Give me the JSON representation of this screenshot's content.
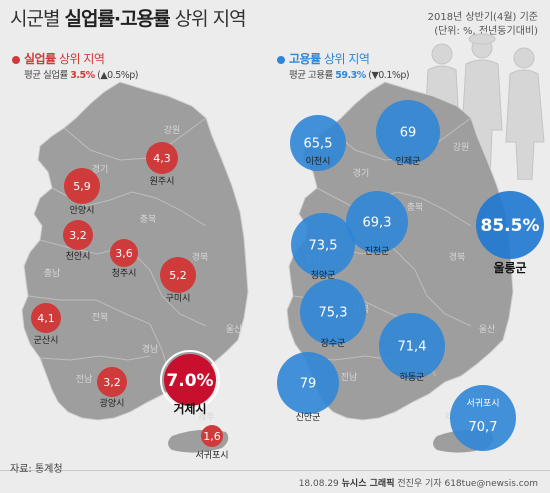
{
  "header": {
    "title_pre": "시군별 ",
    "title_bold": "실업률·고용률",
    "title_post": " 상위 지역",
    "date_note": "2018년 상반기(4월) 기준",
    "unit_note": "(단위: %, 전년동기대비)"
  },
  "unemployment_section": {
    "head_bold": "실업률",
    "head_rest": " 상위 지역",
    "avg_label": "평균 실업률 ",
    "avg_value": "3.5%",
    "avg_change": " (▲0.5%p)"
  },
  "employment_section": {
    "head_bold": "고용률",
    "head_rest": " 상위 지역",
    "avg_label": "평균 고용률 ",
    "avg_value": "59.3%",
    "avg_change": " (▼0.1%p)"
  },
  "region_labels_left": [
    "강원",
    "경기",
    "충북",
    "충남",
    "경북",
    "전북",
    "경남",
    "울산",
    "전남",
    "제주"
  ],
  "region_labels_right": [
    "강원",
    "경기",
    "충북",
    "충남",
    "경북",
    "전북",
    "울산",
    "전남",
    "제주"
  ],
  "colors": {
    "unemployment": "#cf3a3a",
    "unemployment_top": "#c8102e",
    "employment": "#2f86d6",
    "employment_top": "#1f78d1",
    "map": "#9e9e9e",
    "background": "#ececec"
  },
  "chart_data": [
    {
      "type": "table",
      "title": "실업률 상위 지역",
      "categories": [
        "거제시",
        "안양시",
        "원주시",
        "구미시",
        "청주시",
        "천안시",
        "광양시",
        "군산시",
        "서귀포시"
      ],
      "values": [
        7.0,
        5.9,
        4.3,
        5.2,
        3.6,
        3.2,
        3.2,
        4.1,
        1.6
      ],
      "value_labels": [
        "7.0%",
        "5,9",
        "4,3",
        "5,2",
        "3,6",
        "3,2",
        "3,2",
        "4,1",
        "1,6"
      ],
      "unit": "%"
    },
    {
      "type": "table",
      "title": "고용률 상위 지역",
      "categories": [
        "울릉군",
        "이천시",
        "인제군",
        "진천군",
        "청양군",
        "장수군",
        "하동군",
        "신안군",
        "서귀포시"
      ],
      "values": [
        85.5,
        65.5,
        69,
        69.3,
        73.5,
        75.3,
        71.4,
        79,
        70.7
      ],
      "value_labels": [
        "85.5%",
        "65,5",
        "69",
        "69,3",
        "73,5",
        "75,3",
        "71,4",
        "79",
        "70,7"
      ],
      "unit": "%"
    }
  ],
  "footer": {
    "source": "자료: 통계청",
    "credit_date": "18.08.29",
    "credit_org": "뉴시스 그래픽",
    "credit_person": "전진우 기자 618tue@newsis.com"
  }
}
